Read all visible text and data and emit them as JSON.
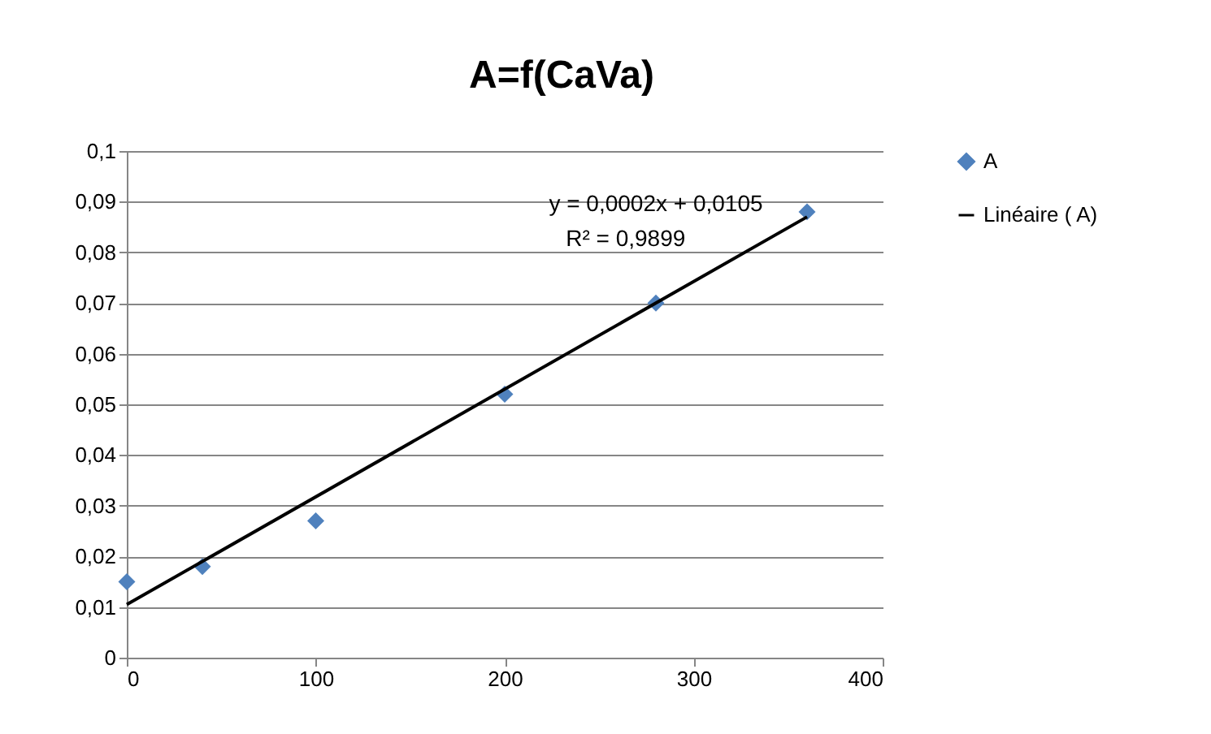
{
  "chart_data": {
    "type": "scatter",
    "title": "A=f(CaVa)",
    "series": [
      {
        "name": "A",
        "type": "scatter",
        "marker": "diamond",
        "color": "#4f81bd",
        "x": [
          0,
          40,
          100,
          200,
          280,
          360
        ],
        "values": [
          0.015,
          0.018,
          0.027,
          0.052,
          0.07,
          0.088
        ]
      },
      {
        "name": "Linéaire ( A)",
        "type": "line",
        "marker": "none",
        "color": "#000000",
        "x": [
          0,
          360
        ],
        "values": [
          0.0105,
          0.087
        ]
      }
    ],
    "xlim": [
      0,
      400
    ],
    "xticks": [
      0,
      100,
      200,
      300,
      400
    ],
    "ylim": [
      0,
      0.1
    ],
    "yticks": [
      0,
      {
        "value": 0.01,
        "label": "0,01"
      },
      {
        "value": 0.02,
        "label": "0,02"
      },
      {
        "value": 0.03,
        "label": "0,03"
      },
      {
        "value": 0.04,
        "label": "0,04"
      },
      {
        "value": 0.05,
        "label": "0,05"
      },
      {
        "value": 0.06,
        "label": "0,06"
      },
      {
        "value": 0.07,
        "label": "0,07"
      },
      {
        "value": 0.08,
        "label": "0,08"
      },
      {
        "value": 0.09,
        "label": "0,09"
      },
      {
        "value": 0.1,
        "label": "0,1"
      }
    ],
    "annotations": [
      "y = 0,0002x + 0,0105",
      "R² = 0,9899"
    ],
    "grid": "y",
    "legend": "right"
  }
}
